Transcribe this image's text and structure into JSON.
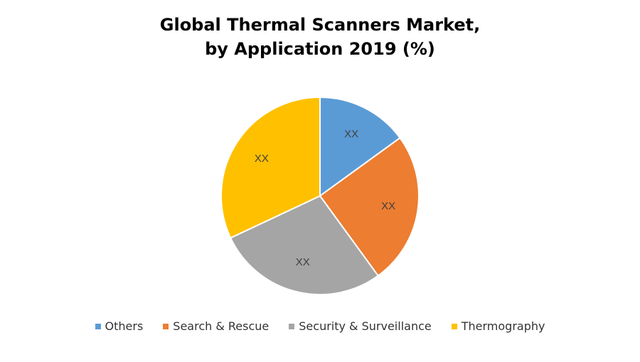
{
  "chart_data": {
    "type": "pie",
    "title": "Global Thermal Scanners Market, by Application 2019 (%)",
    "title_lines": [
      "Global Thermal Scanners Market,",
      "by Application 2019 (%)"
    ],
    "categories": [
      "Others",
      "Search & Rescue",
      "Security & Surveillance",
      "Thermography"
    ],
    "values": [
      15,
      25,
      28,
      32
    ],
    "data_labels": [
      "XX",
      "XX",
      "XX",
      "XX"
    ],
    "colors": [
      "#5B9BD5",
      "#ED7D31",
      "#A5A5A5",
      "#FFC000"
    ],
    "legend_position": "bottom",
    "start_angle": "12 o'clock",
    "direction": "clockwise"
  }
}
